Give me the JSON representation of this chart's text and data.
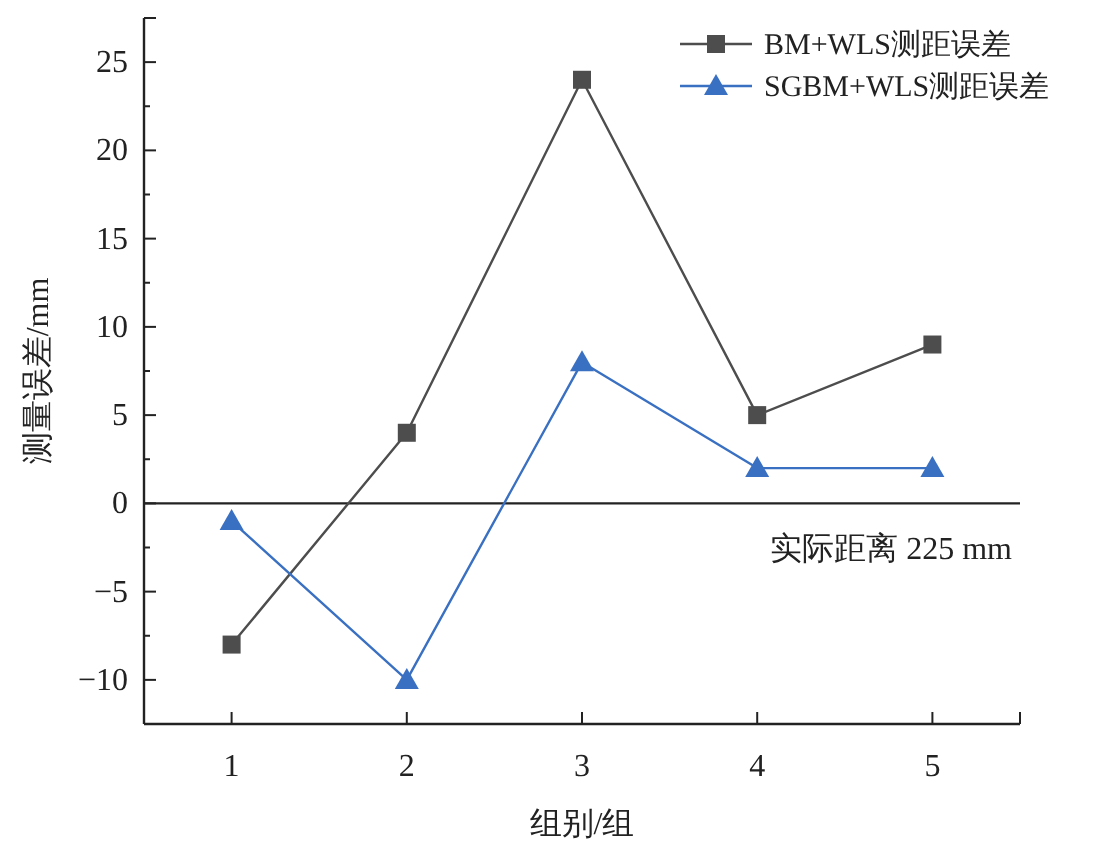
{
  "chart_data": {
    "type": "line",
    "xlabel": "组别/组",
    "ylabel": "测量误差/mm",
    "x": [
      1,
      2,
      3,
      4,
      5
    ],
    "series": [
      {
        "name": "BM+WLS测距误差",
        "color": "#4d4d4d",
        "marker": "square",
        "values": [
          -8,
          4,
          24,
          5,
          9
        ]
      },
      {
        "name": "SGBM+WLS测距误差",
        "color": "#3a70c2",
        "marker": "triangle",
        "values": [
          -1,
          -10,
          8,
          2,
          2
        ]
      }
    ],
    "xlim": [
      0.5,
      5.5
    ],
    "ylim": [
      -12.5,
      27.5
    ],
    "xticks": [
      1,
      2,
      3,
      4,
      5
    ],
    "yticks": [
      -10,
      {
        "value": -7.5,
        "label": null
      },
      -5,
      {
        "value": -2.5,
        "label": null
      },
      0,
      {
        "value": 2.5,
        "label": null
      },
      5,
      {
        "value": 7.5,
        "label": null
      },
      10,
      {
        "value": 12.5,
        "label": null
      },
      15,
      {
        "value": 17.5,
        "label": null
      },
      20,
      {
        "value": 22.5,
        "label": null
      },
      25
    ],
    "ref_lines": [
      {
        "axis": "y",
        "value": 0,
        "label": "实际距离 225 mm",
        "color": "#222222"
      }
    ],
    "line_style": "solid",
    "grid": false,
    "legend": "top right"
  }
}
